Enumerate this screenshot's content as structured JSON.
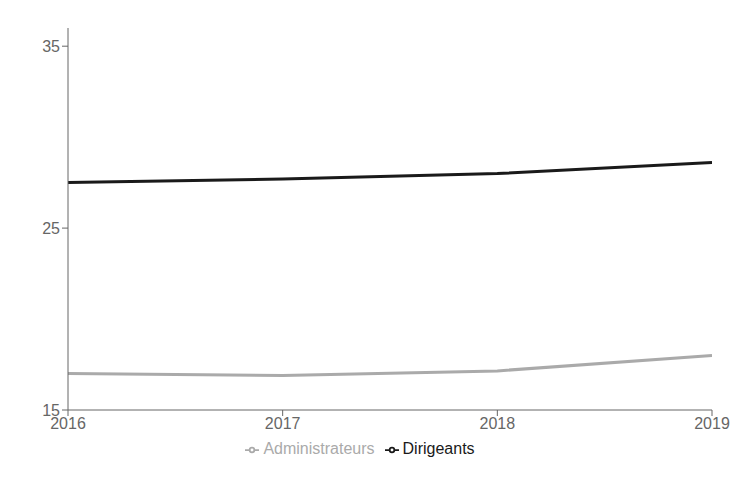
{
  "chart_data": {
    "type": "line",
    "x": [
      2016,
      2017,
      2018,
      2019
    ],
    "xlim": [
      2016,
      2019
    ],
    "xticks": [
      2016,
      2017,
      2018,
      2019
    ],
    "ylim": [
      15,
      36
    ],
    "yticks": [
      15,
      25,
      35
    ],
    "grid": false,
    "legend": "bottom",
    "series": [
      {
        "name": "Administrateurs",
        "color": "#aaaaaa",
        "values": [
          17.0,
          16.9,
          17.15,
          18.0
        ]
      },
      {
        "name": "Dirigeants",
        "color": "#1a1a1a",
        "values": [
          27.5,
          27.7,
          28.0,
          28.6
        ]
      }
    ]
  }
}
